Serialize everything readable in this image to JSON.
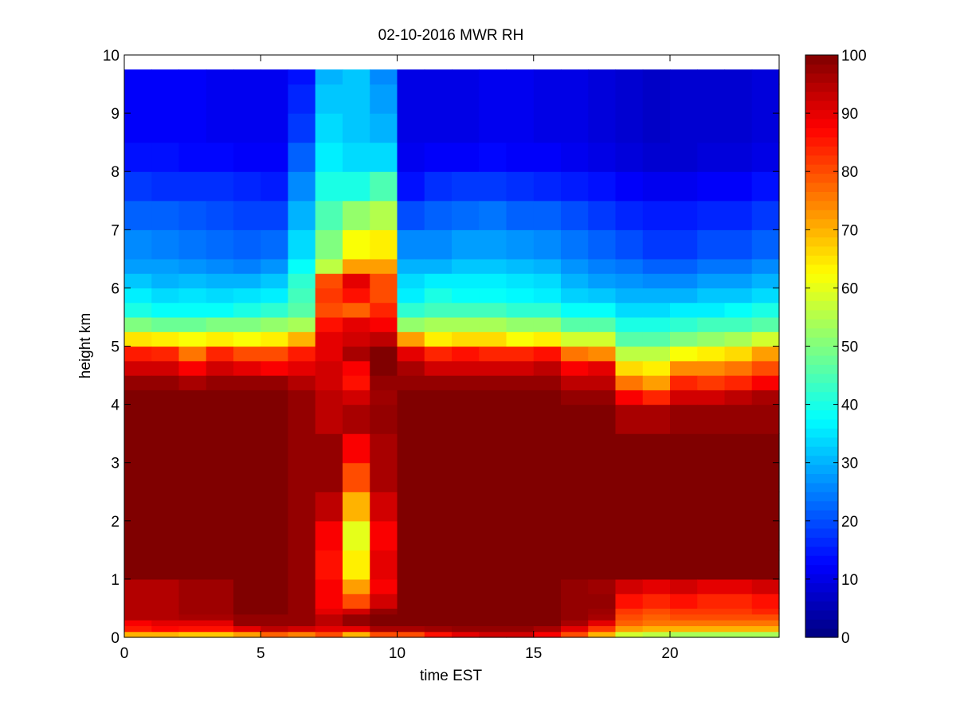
{
  "chart_data": {
    "type": "heatmap",
    "title": "02-10-2016 MWR RH",
    "xlabel": "time EST",
    "ylabel": "height km",
    "xlim": [
      0,
      24
    ],
    "ylim": [
      0,
      10
    ],
    "x_ticks": [
      0,
      5,
      10,
      15,
      20
    ],
    "y_ticks": [
      0,
      1,
      2,
      3,
      4,
      5,
      6,
      7,
      8,
      9,
      10
    ],
    "colormap": "jet",
    "colorbar": {
      "range": [
        0,
        100
      ],
      "ticks": [
        0,
        10,
        20,
        30,
        40,
        50,
        60,
        70,
        80,
        90,
        100
      ]
    },
    "grid": false,
    "time_bins_start": [
      0,
      1,
      2,
      3,
      4,
      5,
      6,
      7,
      8,
      9,
      10,
      11,
      12,
      13,
      14,
      15,
      16,
      17,
      18,
      19,
      20,
      21,
      22,
      23
    ],
    "time_bin_width": 1.0,
    "data_top_km": 9.75,
    "height_levels_km": [
      0.0,
      0.1,
      0.2,
      0.3,
      0.4,
      0.5,
      0.75,
      1.0,
      1.5,
      2.0,
      2.5,
      3.0,
      3.5,
      4.0,
      4.25,
      4.5,
      4.75,
      5.0,
      5.25,
      5.5,
      5.75,
      6.0,
      6.25,
      6.5,
      7.0,
      7.5,
      8.0,
      8.5,
      9.0,
      9.5,
      9.75
    ],
    "rh_profiles_percent": [
      [
        70,
        85,
        88,
        95,
        95,
        95,
        95,
        100,
        100,
        100,
        100,
        100,
        100,
        100,
        98,
        92,
        85,
        65,
        50,
        40,
        36,
        32,
        28,
        26,
        22,
        18,
        14,
        12,
        12,
        12,
        12
      ],
      [
        70,
        87,
        90,
        95,
        95,
        95,
        95,
        100,
        100,
        100,
        100,
        100,
        100,
        100,
        98,
        92,
        84,
        64,
        48,
        38,
        34,
        30,
        28,
        25,
        22,
        17,
        14,
        12,
        12,
        12,
        12
      ],
      [
        68,
        86,
        90,
        96,
        97,
        97,
        97,
        100,
        100,
        100,
        100,
        100,
        100,
        100,
        96,
        88,
        76,
        62,
        48,
        38,
        35,
        31,
        27,
        24,
        21,
        17,
        13,
        12,
        12,
        12,
        12
      ],
      [
        68,
        86,
        90,
        96,
        97,
        97,
        97,
        100,
        100,
        100,
        100,
        100,
        100,
        100,
        98,
        92,
        84,
        64,
        50,
        38,
        34,
        30,
        26,
        23,
        20,
        17,
        13,
        11,
        11,
        11,
        11
      ],
      [
        72,
        90,
        98,
        98,
        100,
        100,
        100,
        100,
        100,
        100,
        100,
        100,
        100,
        100,
        98,
        90,
        80,
        62,
        50,
        40,
        35,
        30,
        25,
        22,
        19,
        16,
        12,
        11,
        11,
        11,
        11
      ],
      [
        78,
        94,
        98,
        98,
        100,
        100,
        100,
        100,
        100,
        100,
        100,
        100,
        100,
        100,
        98,
        88,
        80,
        64,
        52,
        42,
        36,
        32,
        27,
        23,
        19,
        15,
        12,
        11,
        11,
        11,
        11
      ],
      [
        75,
        92,
        98,
        98,
        98,
        98,
        98,
        98,
        98,
        98,
        98,
        98,
        98,
        98,
        95,
        90,
        85,
        70,
        54,
        46,
        44,
        42,
        38,
        34,
        30,
        26,
        22,
        18,
        16,
        14,
        14
      ],
      [
        80,
        90,
        94,
        94,
        90,
        88,
        88,
        86,
        88,
        94,
        98,
        98,
        94,
        94,
        92,
        92,
        90,
        90,
        86,
        80,
        82,
        80,
        56,
        50,
        45,
        40,
        36,
        34,
        32,
        30,
        30
      ],
      [
        70,
        90,
        98,
        98,
        92,
        80,
        72,
        64,
        60,
        70,
        80,
        88,
        96,
        92,
        86,
        88,
        96,
        92,
        90,
        78,
        86,
        90,
        72,
        62,
        52,
        40,
        34,
        32,
        32,
        32,
        32
      ],
      [
        80,
        96,
        100,
        100,
        98,
        92,
        88,
        90,
        88,
        92,
        96,
        96,
        98,
        97,
        98,
        100,
        100,
        94,
        88,
        84,
        80,
        80,
        72,
        64,
        55,
        45,
        34,
        30,
        28,
        26,
        26
      ],
      [
        80,
        96,
        100,
        100,
        100,
        100,
        100,
        100,
        100,
        100,
        100,
        100,
        100,
        100,
        98,
        96,
        90,
        72,
        52,
        42,
        36,
        34,
        30,
        26,
        20,
        14,
        11,
        10,
        10,
        10,
        10
      ],
      [
        86,
        97,
        100,
        100,
        100,
        100,
        100,
        100,
        100,
        100,
        100,
        100,
        100,
        100,
        98,
        92,
        84,
        64,
        54,
        44,
        40,
        36,
        30,
        26,
        22,
        17,
        12,
        10,
        10,
        10,
        10
      ],
      [
        90,
        98,
        100,
        100,
        100,
        100,
        100,
        100,
        100,
        100,
        100,
        100,
        100,
        100,
        98,
        92,
        86,
        66,
        54,
        44,
        38,
        36,
        32,
        28,
        23,
        18,
        12,
        10,
        10,
        10,
        10
      ],
      [
        92,
        98,
        100,
        100,
        100,
        100,
        100,
        100,
        100,
        100,
        100,
        100,
        100,
        100,
        98,
        92,
        84,
        66,
        54,
        44,
        38,
        36,
        32,
        28,
        24,
        18,
        13,
        11,
        11,
        11,
        11
      ],
      [
        92,
        98,
        100,
        100,
        100,
        100,
        100,
        100,
        100,
        100,
        100,
        100,
        100,
        100,
        98,
        92,
        84,
        62,
        52,
        42,
        37,
        35,
        31,
        27,
        22,
        17,
        12,
        11,
        11,
        11,
        11
      ],
      [
        88,
        96,
        100,
        100,
        100,
        100,
        100,
        100,
        100,
        100,
        100,
        100,
        100,
        100,
        98,
        94,
        86,
        64,
        52,
        42,
        36,
        34,
        30,
        26,
        22,
        16,
        12,
        10,
        10,
        10,
        10
      ],
      [
        80,
        90,
        96,
        98,
        98,
        98,
        98,
        100,
        100,
        100,
        100,
        100,
        100,
        98,
        94,
        88,
        76,
        58,
        46,
        38,
        33,
        30,
        27,
        24,
        20,
        15,
        11,
        10,
        10,
        10,
        10
      ],
      [
        70,
        82,
        90,
        96,
        97,
        98,
        97,
        100,
        100,
        100,
        100,
        100,
        100,
        98,
        94,
        90,
        74,
        58,
        46,
        38,
        32,
        28,
        25,
        22,
        18,
        14,
        10,
        9,
        9,
        9,
        9
      ],
      [
        58,
        72,
        78,
        80,
        82,
        86,
        92,
        100,
        100,
        100,
        100,
        100,
        96,
        88,
        76,
        66,
        56,
        46,
        40,
        34,
        30,
        27,
        24,
        20,
        16,
        12,
        9,
        8,
        8,
        8,
        8
      ],
      [
        56,
        70,
        76,
        78,
        80,
        84,
        90,
        100,
        100,
        100,
        100,
        100,
        96,
        84,
        72,
        64,
        56,
        46,
        40,
        34,
        30,
        26,
        22,
        18,
        15,
        11,
        8,
        7,
        7,
        7,
        7
      ],
      [
        54,
        70,
        76,
        80,
        82,
        86,
        92,
        100,
        100,
        100,
        100,
        100,
        98,
        92,
        84,
        74,
        62,
        50,
        42,
        36,
        30,
        26,
        22,
        18,
        15,
        11,
        8,
        8,
        8,
        8,
        8
      ],
      [
        54,
        70,
        76,
        80,
        82,
        84,
        90,
        100,
        100,
        100,
        100,
        100,
        98,
        92,
        82,
        74,
        64,
        52,
        44,
        36,
        32,
        28,
        24,
        20,
        16,
        12,
        9,
        8,
        8,
        8,
        8
      ],
      [
        54,
        70,
        76,
        80,
        82,
        84,
        90,
        100,
        100,
        100,
        100,
        100,
        98,
        94,
        84,
        76,
        66,
        54,
        44,
        38,
        32,
        28,
        24,
        20,
        16,
        12,
        9,
        8,
        8,
        8,
        8
      ],
      [
        54,
        70,
        76,
        80,
        84,
        86,
        92,
        100,
        100,
        100,
        100,
        100,
        98,
        96,
        88,
        80,
        72,
        58,
        46,
        40,
        34,
        30,
        26,
        22,
        18,
        14,
        10,
        9,
        9,
        9,
        9
      ]
    ]
  }
}
